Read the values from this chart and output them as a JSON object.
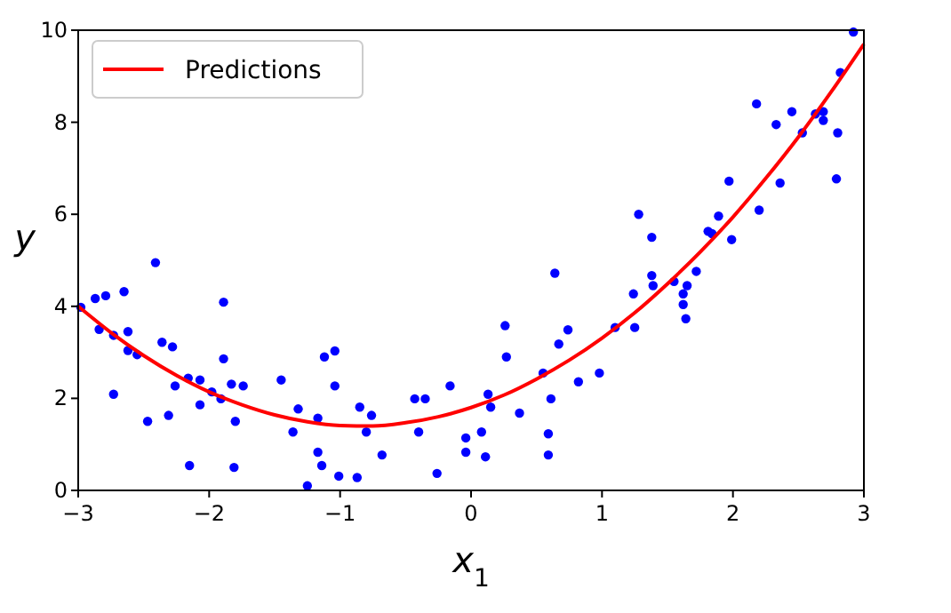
{
  "chart_data": {
    "type": "scatter",
    "xlabel": "x$_{1}$",
    "ylabel": "y",
    "xlim": [
      -3,
      3
    ],
    "ylim": [
      0,
      10
    ],
    "xticks": [
      {
        "value": -3,
        "label": "−3"
      },
      {
        "value": -2,
        "label": "−2"
      },
      {
        "value": -1,
        "label": "−1"
      },
      0,
      1,
      2,
      3
    ],
    "yticks": [
      0,
      2,
      4,
      6,
      8,
      10
    ],
    "grid": false,
    "legend": "top left",
    "series": [
      {
        "color": "#0000ff",
        "marker": "circle",
        "x": [
          -2.98,
          -2.87,
          -2.79,
          -2.84,
          -2.73,
          -2.73,
          -2.65,
          -2.62,
          -2.62,
          -2.55,
          -2.47,
          -2.41,
          -2.36,
          -2.28,
          -2.31,
          -2.26,
          -2.16,
          -2.15,
          -2.07,
          -2.07,
          -1.98,
          -1.91,
          -1.89,
          -1.89,
          -1.83,
          -1.8,
          -1.81,
          -1.74,
          -1.45,
          -1.36,
          -1.32,
          -1.25,
          -1.17,
          -1.17,
          -1.14,
          -1.12,
          -1.04,
          -1.04,
          -1.01,
          -0.87,
          -0.85,
          -0.8,
          -0.76,
          -0.68,
          -0.43,
          -0.35,
          -0.4,
          -0.26,
          -0.16,
          -0.04,
          -0.04,
          0.08,
          0.11,
          0.13,
          0.15,
          0.26,
          0.27,
          0.37,
          0.55,
          0.59,
          0.59,
          0.61,
          0.64,
          0.67,
          0.74,
          0.82,
          0.98,
          1.1,
          1.24,
          1.25,
          1.28,
          1.38,
          1.38,
          1.39,
          1.55,
          1.62,
          1.62,
          1.64,
          1.65,
          1.72,
          1.81,
          1.84,
          1.89,
          1.97,
          1.99,
          2.18,
          2.2,
          2.33,
          2.36,
          2.45,
          2.53,
          2.63,
          2.69,
          2.69,
          2.8,
          2.79,
          2.82,
          2.92
        ],
        "values": [
          3.98,
          4.17,
          4.23,
          3.5,
          3.37,
          2.09,
          4.32,
          3.45,
          3.04,
          2.95,
          1.5,
          4.95,
          3.22,
          3.12,
          1.63,
          2.27,
          2.44,
          0.54,
          2.4,
          1.86,
          2.14,
          1.99,
          4.09,
          2.86,
          2.31,
          1.5,
          0.5,
          2.27,
          2.4,
          1.27,
          1.77,
          0.1,
          1.57,
          0.83,
          0.54,
          2.9,
          3.03,
          2.27,
          0.31,
          0.28,
          1.81,
          1.27,
          1.63,
          0.77,
          1.99,
          1.99,
          1.27,
          0.37,
          2.27,
          1.14,
          0.83,
          1.27,
          0.73,
          2.09,
          1.81,
          3.58,
          2.9,
          1.68,
          2.55,
          1.23,
          0.77,
          1.99,
          4.72,
          3.18,
          3.49,
          2.36,
          2.55,
          3.54,
          4.27,
          3.54,
          6.0,
          5.5,
          4.67,
          4.45,
          4.54,
          4.27,
          4.04,
          3.73,
          4.45,
          4.76,
          5.63,
          5.58,
          5.96,
          6.72,
          5.45,
          8.4,
          6.09,
          7.95,
          6.68,
          8.23,
          7.77,
          8.18,
          8.23,
          8.04,
          7.77,
          6.77,
          9.08,
          9.96
        ]
      },
      {
        "type": "line",
        "name": "Predictions",
        "color": "#ff0000",
        "marker": "none",
        "line_style": "solid",
        "x": [
          -3,
          -2.75,
          -2.5,
          -2.25,
          -2,
          -1.75,
          -1.5,
          -1.25,
          -1,
          -0.75,
          -0.5,
          -0.25,
          0,
          0.25,
          0.5,
          0.75,
          1,
          1.25,
          1.5,
          1.75,
          2,
          2.25,
          2.5,
          2.75,
          3
        ],
        "values": [
          4.0,
          3.43,
          2.93,
          2.5,
          2.14,
          1.86,
          1.64,
          1.49,
          1.41,
          1.4,
          1.47,
          1.6,
          1.8,
          2.07,
          2.42,
          2.83,
          3.31,
          3.86,
          4.49,
          5.18,
          5.94,
          6.78,
          7.68,
          8.66,
          9.7
        ]
      }
    ]
  }
}
